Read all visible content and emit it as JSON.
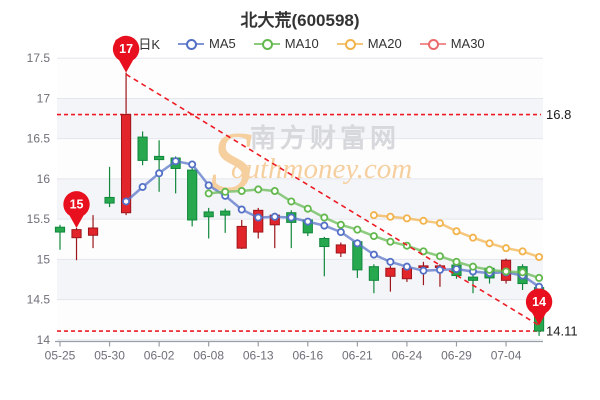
{
  "title": "北大荒(600598)",
  "watermark": {
    "initial": "S",
    "cn": "南方财富网",
    "en": "outhmoney.com"
  },
  "legend": {
    "items": [
      {
        "label": "日K",
        "type": "kline",
        "color": "#e0232b"
      },
      {
        "label": "MA5",
        "type": "line",
        "color": "#5470c6"
      },
      {
        "label": "MA10",
        "type": "line",
        "color": "#63b84e"
      },
      {
        "label": "MA20",
        "type": "line",
        "color": "#f2b34c"
      },
      {
        "label": "MA30",
        "type": "line",
        "color": "#e96a6a"
      }
    ]
  },
  "y_axis": {
    "labels": [
      "17.5",
      "17",
      "16.5",
      "16",
      "15.5",
      "15",
      "14.5",
      "14"
    ],
    "values": [
      17.5,
      17,
      16.5,
      16,
      15.5,
      15,
      14.5,
      14
    ]
  },
  "x_axis": {
    "labels": [
      "05-25",
      "05-30",
      "06-02",
      "06-08",
      "06-13",
      "06-16",
      "06-21",
      "06-24",
      "06-29",
      "07-04"
    ],
    "label_indices": [
      0,
      3,
      6,
      9,
      12,
      15,
      18,
      21,
      24,
      27
    ]
  },
  "colors": {
    "grid": "#e3e6ed",
    "band": "rgba(203,210,226,0.22)",
    "axis": "#999fa6",
    "annotation": "#ed1c24",
    "pin": "#e8101e",
    "watermark_orange": "#f6cf9f",
    "watermark_gray": "#d7d8dc"
  },
  "chart_data": {
    "type": "candlestick+line",
    "ylim": [
      14,
      17.5
    ],
    "up": {
      "fill": "#e1252b",
      "stroke": "#9c161b"
    },
    "down": {
      "fill": "#27a74e",
      "stroke": "#11883c"
    },
    "candles_format": [
      "open",
      "close",
      "high",
      "low"
    ],
    "candles": [
      [
        15.4,
        15.34,
        15.43,
        15.12
      ],
      [
        15.27,
        15.37,
        15.39,
        14.99
      ],
      [
        15.3,
        15.39,
        15.55,
        15.14
      ],
      [
        15.77,
        15.7,
        16.15,
        15.65
      ],
      [
        15.58,
        16.8,
        17.32,
        15.55
      ],
      [
        16.52,
        16.23,
        16.59,
        16.17
      ],
      [
        16.28,
        16.24,
        16.48,
        15.84
      ],
      [
        16.26,
        16.13,
        16.28,
        15.82
      ],
      [
        16.11,
        15.49,
        16.13,
        15.41
      ],
      [
        15.59,
        15.53,
        15.64,
        15.26
      ],
      [
        15.6,
        15.55,
        15.63,
        15.33
      ],
      [
        15.14,
        15.41,
        15.49,
        15.13
      ],
      [
        15.34,
        15.61,
        15.64,
        15.26
      ],
      [
        15.43,
        15.55,
        15.58,
        15.14
      ],
      [
        15.58,
        15.46,
        15.61,
        15.14
      ],
      [
        15.49,
        15.33,
        15.51,
        15.29
      ],
      [
        15.26,
        15.16,
        15.28,
        14.79
      ],
      [
        15.08,
        15.18,
        15.21,
        15.03
      ],
      [
        15.22,
        14.87,
        15.25,
        14.77
      ],
      [
        14.91,
        14.74,
        14.94,
        14.58
      ],
      [
        14.79,
        14.89,
        14.92,
        14.6
      ],
      [
        14.76,
        14.89,
        14.92,
        14.72
      ],
      [
        14.9,
        14.92,
        14.97,
        14.68
      ],
      [
        14.9,
        14.92,
        14.94,
        14.66
      ],
      [
        14.93,
        14.8,
        14.96,
        14.76
      ],
      [
        14.78,
        14.74,
        14.9,
        14.58
      ],
      [
        14.89,
        14.77,
        14.92,
        14.7
      ],
      [
        14.74,
        14.99,
        15.01,
        14.7
      ],
      [
        14.91,
        14.7,
        14.94,
        14.62
      ],
      [
        14.65,
        14.11,
        14.68,
        14.05
      ]
    ],
    "series": [
      {
        "name": "MA5",
        "color": "#5470c6",
        "values": [
          null,
          null,
          null,
          null,
          15.72,
          15.9,
          16.07,
          16.22,
          16.18,
          15.92,
          15.79,
          15.62,
          15.52,
          15.53,
          15.52,
          15.47,
          15.42,
          15.34,
          15.2,
          15.06,
          14.97,
          14.91,
          14.86,
          14.87,
          14.88,
          14.85,
          14.83,
          14.84,
          14.8,
          14.66
        ]
      },
      {
        "name": "MA10",
        "color": "#63b84e",
        "values": [
          null,
          null,
          null,
          null,
          null,
          null,
          null,
          null,
          null,
          15.82,
          15.84,
          15.85,
          15.87,
          15.85,
          15.72,
          15.63,
          15.52,
          15.43,
          15.37,
          15.29,
          15.22,
          15.17,
          15.1,
          15.04,
          14.97,
          14.91,
          14.87,
          14.85,
          14.84,
          14.77
        ]
      },
      {
        "name": "MA20",
        "color": "#f2b34c",
        "values": [
          null,
          null,
          null,
          null,
          null,
          null,
          null,
          null,
          null,
          null,
          null,
          null,
          null,
          null,
          null,
          null,
          null,
          null,
          null,
          15.55,
          15.53,
          15.51,
          15.48,
          15.45,
          15.35,
          15.27,
          15.2,
          15.14,
          15.1,
          15.03
        ]
      },
      {
        "name": "MA30",
        "color": "#e96a6a",
        "values": [
          null,
          null,
          null,
          null,
          null,
          null,
          null,
          null,
          null,
          null,
          null,
          null,
          null,
          null,
          null,
          null,
          null,
          null,
          null,
          null,
          null,
          null,
          null,
          null,
          null,
          null,
          null,
          null,
          null,
          null
        ]
      }
    ],
    "annotations": {
      "pins": [
        {
          "label": "17",
          "index": 4,
          "price": 17.32
        },
        {
          "label": "15",
          "index": 1,
          "price": 15.39
        },
        {
          "label": "14",
          "index": 29,
          "price": 14.18
        }
      ],
      "hlines": [
        {
          "label": "16.8",
          "value": 16.8
        },
        {
          "label": "14.11",
          "value": 14.11
        }
      ],
      "trendline": {
        "from": {
          "index": 4,
          "price": 17.3
        },
        "to": {
          "index": 29,
          "price": 14.18
        }
      }
    }
  }
}
